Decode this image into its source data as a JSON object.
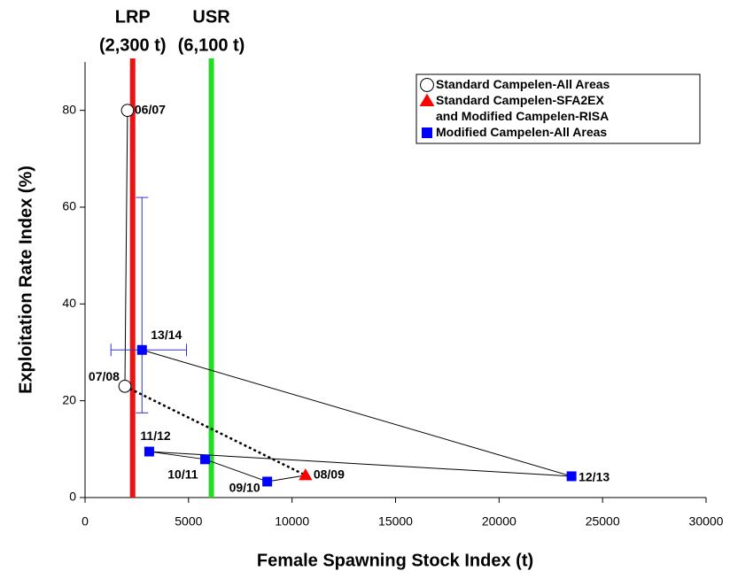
{
  "chart_data": {
    "type": "scatter",
    "xlabel": "Female Spawning Stock Index (t)",
    "ylabel": "Exploitation Rate Index (%)",
    "xlim": [
      0,
      30000
    ],
    "xticks": [
      0,
      5000,
      10000,
      15000,
      20000,
      25000,
      30000
    ],
    "ylim": [
      0,
      90
    ],
    "yticks": [
      0,
      20,
      40,
      60,
      80
    ],
    "legend": "upper right",
    "reference_lines": [
      {
        "label": "LRP",
        "sublabel": "(2,300 t)",
        "value": 2300,
        "color": "#ee1111"
      },
      {
        "label": "USR",
        "sublabel": "(6,100 t)",
        "value": 6100,
        "color": "#22dd22"
      }
    ],
    "series": [
      {
        "name": "Standard Campelen-All Areas",
        "marker": "circle",
        "color": "#ffffff",
        "labels": [
          "06/07",
          "07/08"
        ],
        "x": [
          2050,
          1925
        ],
        "y": [
          80,
          23
        ]
      },
      {
        "name": "Standard Campelen-SFA2EX\nand Modified Campelen-RISA",
        "marker": "triangle",
        "color": "#ff0000",
        "labels": [
          "08/09"
        ],
        "x": [
          10650
        ],
        "y": [
          4.6
        ]
      },
      {
        "name": "Modified Campelen-All Areas",
        "marker": "square",
        "color": "#0000ff",
        "labels": [
          "09/10",
          "10/11",
          "11/12",
          "12/13",
          "13/14"
        ],
        "x": [
          8800,
          5800,
          3100,
          23500,
          2750
        ],
        "y": [
          3.3,
          7.9,
          9.5,
          4.4,
          30.5
        ],
        "x_interval": [
          null,
          null,
          null,
          null,
          [
            1250,
            4900
          ]
        ],
        "y_interval": [
          null,
          null,
          null,
          null,
          [
            17.5,
            62
          ]
        ]
      }
    ]
  }
}
